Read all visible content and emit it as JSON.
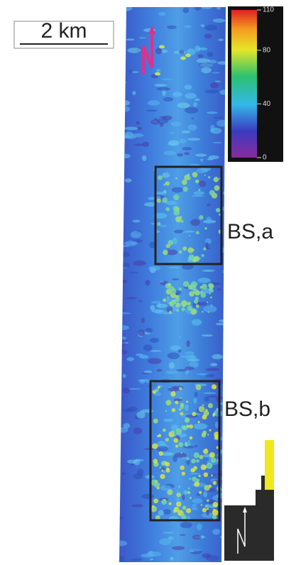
{
  "scale_bar": {
    "label": "2 km"
  },
  "regions": [
    {
      "label": "BS,a"
    },
    {
      "label": "BS,b"
    }
  ],
  "colorbar": {
    "lim": [
      0,
      110
    ],
    "ticks": [
      0,
      40,
      80,
      110
    ]
  }
}
